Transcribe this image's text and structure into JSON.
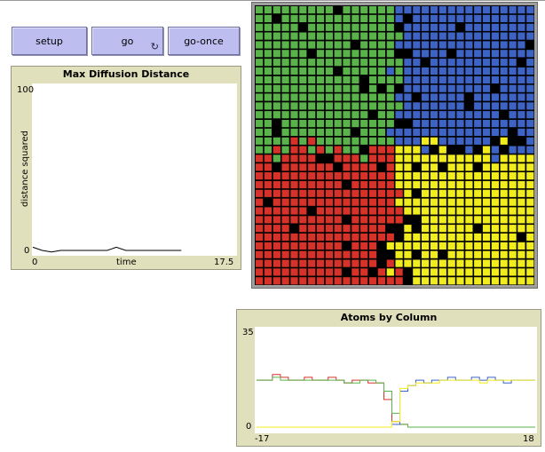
{
  "buttons": {
    "setup": "setup",
    "go": "go",
    "go_once": "go-once"
  },
  "icons": {
    "forever": "forever-icon"
  },
  "plot_max": {
    "title": "Max Diffusion Distance",
    "ylabel": "distance squared",
    "xlabel": "time",
    "xmin": "0",
    "xmax": "17.5",
    "ymin": "0",
    "ymax": "100"
  },
  "plot_atoms": {
    "title": "Atoms by Column",
    "xmin": "-17",
    "xmax": "18",
    "ymin": "0",
    "ymax": "35"
  },
  "colors": {
    "green": "#59b24a",
    "blue": "#3d64c4",
    "red": "#d73229",
    "yellow": "#f1ec1d",
    "empty": "#000000",
    "button": "#bdbdf0",
    "plot_frame": "#e0e0bc"
  },
  "chart_data": [
    {
      "type": "line",
      "title": "Max Diffusion Distance",
      "xlabel": "time",
      "ylabel": "distance squared",
      "xlim": [
        0,
        17.5
      ],
      "ylim": [
        0,
        100
      ],
      "series": [
        {
          "x": [
            0,
            1,
            2,
            3,
            4,
            5,
            6,
            7,
            8,
            9,
            10,
            11,
            12,
            13,
            14,
            15,
            16
          ],
          "values": [
            2,
            0,
            -1,
            0,
            0,
            0,
            0,
            0,
            0,
            2,
            0,
            0,
            0,
            0,
            0,
            0,
            0
          ]
        }
      ]
    },
    {
      "type": "line",
      "title": "Atoms by Column",
      "xlim": [
        -17,
        18
      ],
      "ylim": [
        0,
        35
      ],
      "series": [
        {
          "color": "#d73229",
          "x": [
            -17,
            -16,
            -15,
            -14,
            -13,
            -12,
            -11,
            -10,
            -9,
            -8,
            -7,
            -6,
            -5,
            -4,
            -3,
            -2,
            -1,
            0,
            1,
            2,
            3,
            4,
            5,
            6,
            7,
            8,
            9,
            10,
            11,
            12,
            13,
            14,
            15,
            16,
            17,
            18
          ],
          "values": [
            17,
            17,
            19,
            18,
            17,
            17,
            18,
            17,
            17,
            18,
            17,
            16,
            17,
            17,
            16,
            16,
            10,
            2,
            1,
            0,
            0,
            0,
            0,
            0,
            0,
            0,
            0,
            0,
            0,
            0,
            0,
            0,
            0,
            0,
            0,
            0
          ]
        },
        {
          "color": "#59b24a",
          "x": [
            -17,
            -16,
            -15,
            -14,
            -13,
            -12,
            -11,
            -10,
            -9,
            -8,
            -7,
            -6,
            -5,
            -4,
            -3,
            -2,
            -1,
            0,
            1,
            2,
            3,
            4,
            5,
            6,
            7,
            8,
            9,
            10,
            11,
            12,
            13,
            14,
            15,
            16,
            17,
            18
          ],
          "values": [
            17,
            17,
            18,
            17,
            17,
            17,
            17,
            17,
            17,
            17,
            17,
            16,
            16,
            17,
            17,
            16,
            13,
            5,
            1,
            0,
            0,
            0,
            0,
            0,
            0,
            0,
            0,
            0,
            0,
            0,
            0,
            0,
            0,
            0,
            0,
            0
          ]
        },
        {
          "color": "#3d64c4",
          "x": [
            -17,
            -16,
            -15,
            -14,
            -13,
            -12,
            -11,
            -10,
            -9,
            -8,
            -7,
            -6,
            -5,
            -4,
            -3,
            -2,
            -1,
            0,
            1,
            2,
            3,
            4,
            5,
            6,
            7,
            8,
            9,
            10,
            11,
            12,
            13,
            14,
            15,
            16,
            17,
            18
          ],
          "values": [
            0,
            0,
            0,
            0,
            0,
            0,
            0,
            0,
            0,
            0,
            0,
            0,
            0,
            0,
            0,
            0,
            0,
            1,
            13,
            15,
            17,
            16,
            17,
            17,
            18,
            17,
            17,
            18,
            17,
            18,
            17,
            16,
            17,
            17,
            17,
            17
          ]
        },
        {
          "color": "#f1ec1d",
          "x": [
            -17,
            -16,
            -15,
            -14,
            -13,
            -12,
            -11,
            -10,
            -9,
            -8,
            -7,
            -6,
            -5,
            -4,
            -3,
            -2,
            -1,
            0,
            1,
            2,
            3,
            4,
            5,
            6,
            7,
            8,
            9,
            10,
            11,
            12,
            13,
            14,
            15,
            16,
            17,
            18
          ],
          "values": [
            0,
            0,
            0,
            0,
            0,
            0,
            0,
            0,
            0,
            0,
            0,
            0,
            0,
            0,
            0,
            0,
            0,
            2,
            14,
            15,
            16,
            16,
            16,
            17,
            17,
            17,
            17,
            17,
            16,
            17,
            17,
            17,
            17,
            17,
            17,
            17
          ]
        }
      ]
    }
  ],
  "world": {
    "cols": 32,
    "rows": 32,
    "empty_fraction": 0.06
  }
}
